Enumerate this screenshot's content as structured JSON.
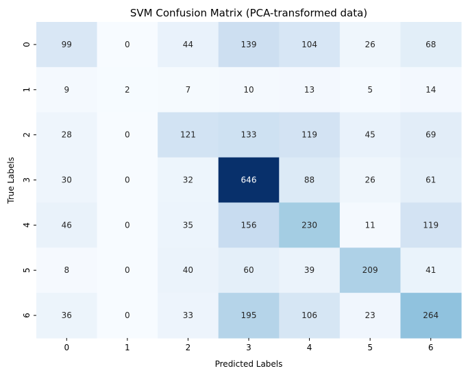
{
  "chart_data": {
    "type": "heatmap",
    "title": "SVM Confusion Matrix (PCA-transformed data)",
    "xlabel": "Predicted Labels",
    "ylabel": "True Labels",
    "x_categories": [
      "0",
      "1",
      "2",
      "3",
      "4",
      "5",
      "6"
    ],
    "y_categories": [
      "0",
      "1",
      "2",
      "3",
      "4",
      "5",
      "6"
    ],
    "values": [
      [
        99,
        0,
        44,
        139,
        104,
        26,
        68
      ],
      [
        9,
        2,
        7,
        10,
        13,
        5,
        14
      ],
      [
        28,
        0,
        121,
        133,
        119,
        45,
        69
      ],
      [
        30,
        0,
        32,
        646,
        88,
        26,
        61
      ],
      [
        46,
        0,
        35,
        156,
        230,
        11,
        119
      ],
      [
        8,
        0,
        40,
        60,
        39,
        209,
        41
      ],
      [
        36,
        0,
        33,
        195,
        106,
        23,
        264
      ]
    ],
    "colormap": "Blues",
    "vmin": 0,
    "vmax": 646,
    "colorbar": false,
    "annotations": true
  }
}
